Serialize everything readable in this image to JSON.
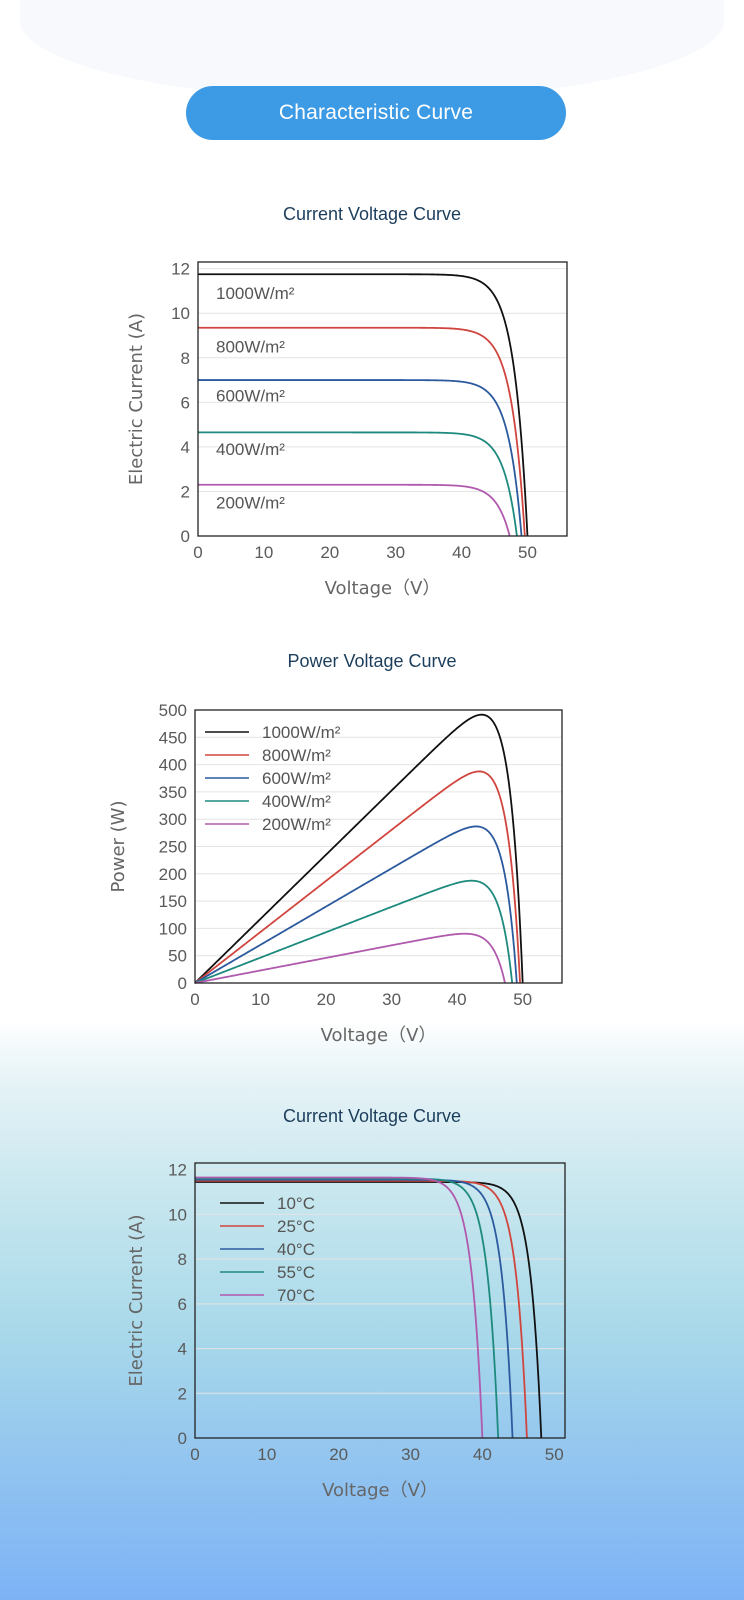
{
  "banner": {
    "label": "Characteristic Curve"
  },
  "colors": {
    "banner": "#3d9be6",
    "title": "#1c3e5c"
  },
  "chart_data": [
    {
      "type": "line",
      "title": "Current  Voltage Curve",
      "xlabel": "Voltage（V）",
      "ylabel": "Electric Current (A)",
      "xlim": [
        0,
        56
      ],
      "ylim": [
        0,
        12.3
      ],
      "xticks": [
        0,
        10,
        20,
        30,
        40,
        50
      ],
      "yticks": [
        0,
        2,
        4,
        6,
        8,
        10,
        12
      ],
      "legend_style": "inline",
      "series": [
        {
          "name": "1000W/m²",
          "color": "#111111",
          "isc": 11.75,
          "voc": 50.0,
          "vt": 2.0
        },
        {
          "name": "800W/m²",
          "color": "#d0463f",
          "isc": 9.35,
          "voc": 49.6,
          "vt": 2.0
        },
        {
          "name": "600W/m²",
          "color": "#2c5a9e",
          "isc": 7.0,
          "voc": 49.1,
          "vt": 2.0
        },
        {
          "name": "400W/m²",
          "color": "#1e8a7e",
          "isc": 4.65,
          "voc": 48.4,
          "vt": 2.0
        },
        {
          "name": "200W/m²",
          "color": "#b05aae",
          "isc": 2.3,
          "voc": 47.3,
          "vt": 2.0
        }
      ]
    },
    {
      "type": "line",
      "title": "Power Voltage Curve",
      "xlabel": "Voltage（V）",
      "ylabel": "Power (W)",
      "xlim": [
        0,
        56
      ],
      "ylim": [
        0,
        500
      ],
      "xticks": [
        0,
        10,
        20,
        30,
        40,
        50
      ],
      "yticks": [
        0,
        50,
        100,
        150,
        200,
        250,
        300,
        350,
        400,
        450,
        500
      ],
      "legend_style": "box",
      "series": [
        {
          "name": "1000W/m²",
          "color": "#111111",
          "isc": 11.75,
          "voc": 50.0,
          "vt": 2.0
        },
        {
          "name": "800W/m²",
          "color": "#d0463f",
          "isc": 9.35,
          "voc": 49.6,
          "vt": 2.0
        },
        {
          "name": "600W/m²",
          "color": "#2c5a9e",
          "isc": 7.0,
          "voc": 49.1,
          "vt": 2.0
        },
        {
          "name": "400W/m²",
          "color": "#1e8a7e",
          "isc": 4.65,
          "voc": 48.4,
          "vt": 2.0
        },
        {
          "name": "200W/m²",
          "color": "#b05aae",
          "isc": 2.3,
          "voc": 47.3,
          "vt": 2.0
        }
      ]
    },
    {
      "type": "line",
      "title": "Current  Voltage Curve",
      "xlabel": "Voltage（V）",
      "ylabel": "Electric Current (A)",
      "xlim": [
        0,
        51.5
      ],
      "ylim": [
        0,
        12.3
      ],
      "xticks": [
        0,
        10,
        20,
        30,
        40,
        50
      ],
      "yticks": [
        0,
        2,
        4,
        6,
        8,
        10,
        12
      ],
      "legend_style": "box",
      "series": [
        {
          "name": "10°C",
          "color": "#111111",
          "isc": 11.45,
          "voc": 48.2,
          "vt": 1.5
        },
        {
          "name": "25°C",
          "color": "#d0463f",
          "isc": 11.5,
          "voc": 46.2,
          "vt": 1.5
        },
        {
          "name": "40°C",
          "color": "#2c5a9e",
          "isc": 11.55,
          "voc": 44.2,
          "vt": 1.5
        },
        {
          "name": "55°C",
          "color": "#1e8a7e",
          "isc": 11.6,
          "voc": 42.2,
          "vt": 1.5
        },
        {
          "name": "70°C",
          "color": "#b05aae",
          "isc": 11.65,
          "voc": 40.0,
          "vt": 1.5
        }
      ]
    }
  ]
}
